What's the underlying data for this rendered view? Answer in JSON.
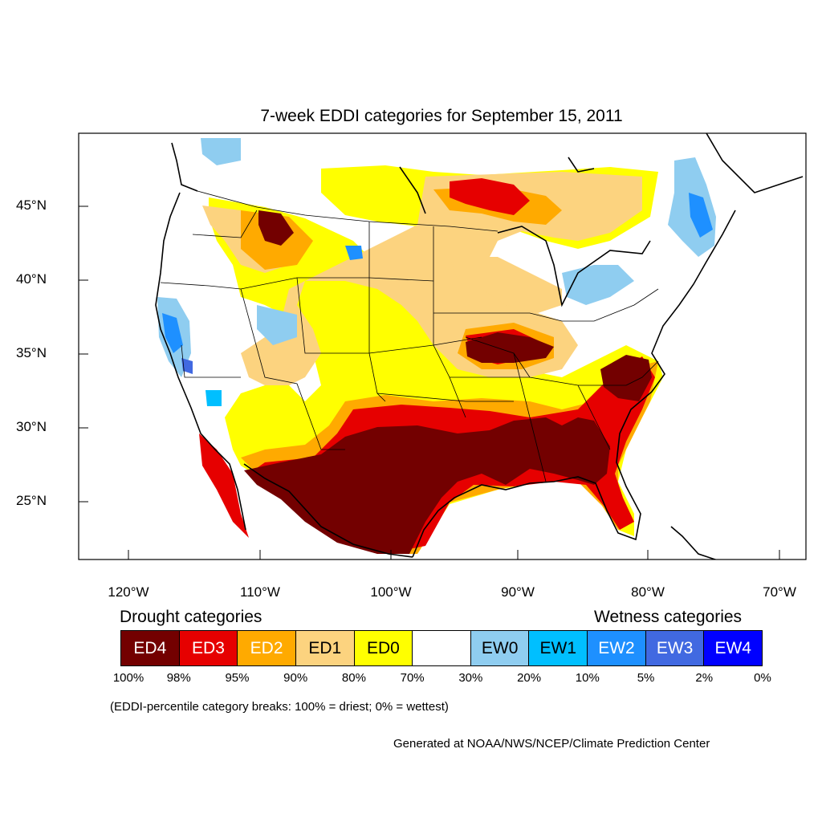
{
  "title": "7-week EDDI categories for September 15, 2011",
  "map": {
    "lat_labels": [
      "45°N",
      "40°N",
      "35°N",
      "30°N",
      "25°N"
    ],
    "lon_labels": [
      "120°W",
      "110°W",
      "100°W",
      "90°W",
      "80°W",
      "70°W"
    ]
  },
  "legend": {
    "drought_heading": "Drought categories",
    "wetness_heading": "Wetness categories",
    "categories": [
      {
        "label": "ED4",
        "color": "#730000",
        "text_color": "#ffffff"
      },
      {
        "label": "ED3",
        "color": "#e60000",
        "text_color": "#ffffff"
      },
      {
        "label": "ED2",
        "color": "#ffaa00",
        "text_color": "#ffffff"
      },
      {
        "label": "ED1",
        "color": "#fcd37f",
        "text_color": "#000000"
      },
      {
        "label": "ED0",
        "color": "#ffff00",
        "text_color": "#000000"
      },
      {
        "label": "",
        "color": "#ffffff",
        "text_color": "#000000"
      },
      {
        "label": "EW0",
        "color": "#8fcdf0",
        "text_color": "#000000"
      },
      {
        "label": "EW1",
        "color": "#00bfff",
        "text_color": "#000000"
      },
      {
        "label": "EW2",
        "color": "#1e90ff",
        "text_color": "#ffffff"
      },
      {
        "label": "EW3",
        "color": "#4169e1",
        "text_color": "#ffffff"
      },
      {
        "label": "EW4",
        "color": "#0000ff",
        "text_color": "#ffffff"
      }
    ],
    "percentiles": [
      "100%",
      "98%",
      "95%",
      "90%",
      "80%",
      "70%",
      "30%",
      "20%",
      "10%",
      "5%",
      "2%",
      "0%"
    ]
  },
  "note": "(EDDI-percentile category breaks: 100% = driest; 0% = wettest)",
  "credit": "Generated at NOAA/NWS/NCEP/Climate Prediction Center"
}
